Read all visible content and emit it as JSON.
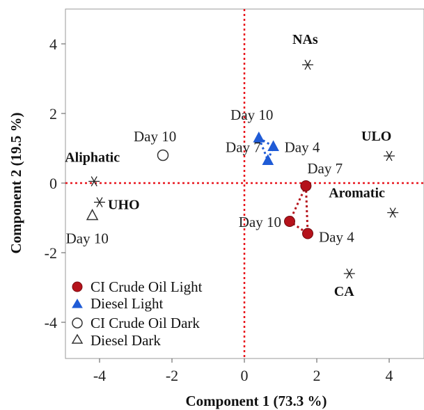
{
  "chart_data": {
    "type": "scatter",
    "xlabel": "Component 1  (73.3 %)",
    "ylabel": "Component 2  (19.5 %)",
    "xlim": [
      -5,
      5
    ],
    "ylim": [
      -5,
      5
    ],
    "xticks": [
      "-4",
      "-2",
      "0",
      "2",
      "4"
    ],
    "yticks": [
      "4",
      "2",
      "0",
      "-2",
      "-4"
    ],
    "xtick_values": [
      -4,
      -2,
      0,
      2,
      4
    ],
    "ytick_values": [
      4,
      2,
      0,
      -2,
      -4
    ],
    "reference_lines": {
      "x": 0,
      "y": 0,
      "color": "#e8141c",
      "style": "dotted"
    },
    "grid": false,
    "legend_position": "bottom-left",
    "series": [
      {
        "name": "CI Crude Oil Light",
        "marker": "filled-circle",
        "color": "#b5121b",
        "connected": true,
        "points": [
          {
            "x": 1.7,
            "y": -0.08,
            "label": "Day 7"
          },
          {
            "x": 1.75,
            "y": -1.45,
            "label": "Day 4"
          },
          {
            "x": 1.25,
            "y": -1.1,
            "label": "Day 10"
          }
        ]
      },
      {
        "name": "Diesel Light",
        "marker": "filled-triangle",
        "color": "#1f5bd6",
        "connected": true,
        "points": [
          {
            "x": 0.4,
            "y": 1.3,
            "label": "Day 10"
          },
          {
            "x": 0.8,
            "y": 1.05,
            "label": "Day 4"
          },
          {
            "x": 0.65,
            "y": 0.65,
            "label": "Day 7"
          }
        ]
      },
      {
        "name": "CI Crude Oil Dark",
        "marker": "open-circle",
        "color": "#333333",
        "connected": false,
        "points": [
          {
            "x": -2.25,
            "y": 0.8,
            "label": "Day 10"
          }
        ]
      },
      {
        "name": "Diesel Dark",
        "marker": "open-triangle",
        "color": "#333333",
        "connected": false,
        "points": [
          {
            "x": -4.2,
            "y": -0.93,
            "label": "Day 10"
          }
        ]
      }
    ],
    "variables": [
      {
        "name": "NAs",
        "x": 1.75,
        "y": 3.4
      },
      {
        "name": "ULO",
        "x": 4.0,
        "y": 0.78
      },
      {
        "name": "Aromatic",
        "x": 4.1,
        "y": -0.85
      },
      {
        "name": "CA",
        "x": 2.9,
        "y": -2.6
      },
      {
        "name": "Aliphatic",
        "x": -4.15,
        "y": 0.05
      },
      {
        "name": "UHO",
        "x": -4.0,
        "y": -0.55
      }
    ]
  }
}
